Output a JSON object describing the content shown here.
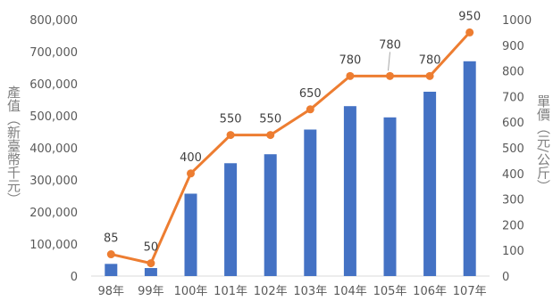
{
  "chart_data": {
    "type": "bar+line",
    "categories": [
      "98年",
      "99年",
      "100年",
      "101年",
      "102年",
      "103年",
      "104年",
      "105年",
      "106年",
      "107年"
    ],
    "series": [
      {
        "type": "bar",
        "axis": "left",
        "values": [
          38000,
          25000,
          257000,
          352000,
          380000,
          457000,
          530000,
          495000,
          575000,
          670000
        ],
        "color": "#4472c4"
      },
      {
        "type": "line",
        "axis": "right",
        "values": [
          85,
          50,
          400,
          550,
          550,
          650,
          780,
          780,
          780,
          950
        ],
        "data_labels": [
          "85",
          "50",
          "400",
          "550",
          "550",
          "650",
          "780",
          "780",
          "780",
          "950"
        ],
        "color": "#ed7d31"
      }
    ],
    "ylabel": "產值（新臺幣千元）",
    "ylabel_right": "單價（元/公斤）",
    "ylim": [
      0,
      800000
    ],
    "ylim_right": [
      0,
      1000
    ],
    "yticks": [
      "0",
      "100,000",
      "200,000",
      "300,000",
      "400,000",
      "500,000",
      "600,000",
      "700,000",
      "800,000"
    ],
    "yticks_right": [
      "0",
      "100",
      "200",
      "300",
      "400",
      "500",
      "600",
      "700",
      "800",
      "900",
      "1000"
    ],
    "grid": false,
    "legend": "none"
  }
}
